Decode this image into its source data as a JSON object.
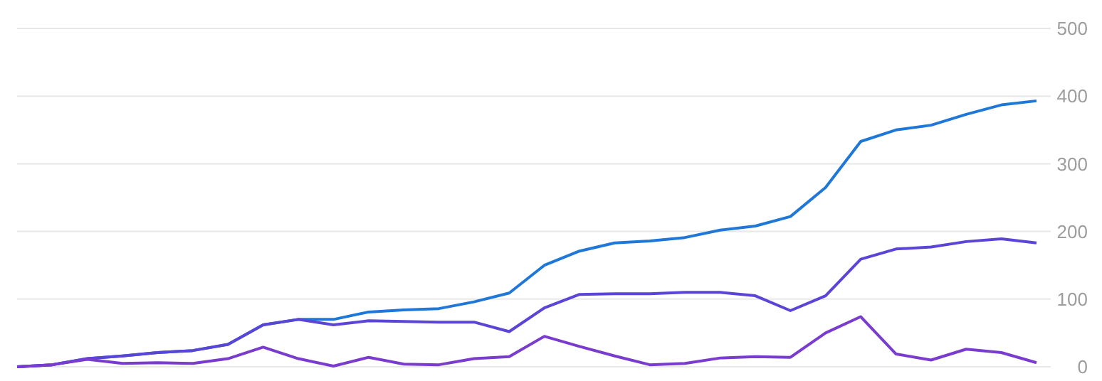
{
  "chart_data": {
    "type": "line",
    "categories": [
      null,
      null,
      null,
      null,
      null,
      null,
      null,
      null,
      null,
      null,
      null,
      null,
      null,
      null,
      null,
      null,
      null,
      null,
      null,
      null,
      null,
      null,
      null,
      null,
      null,
      null,
      null,
      null,
      null,
      null
    ],
    "series": [
      {
        "color": "#1f78d8",
        "values": [
          0,
          3,
          12,
          16,
          21,
          24,
          33,
          62,
          70,
          70,
          81,
          84,
          86,
          96,
          109,
          150,
          171,
          183,
          186,
          191,
          202,
          208,
          222,
          265,
          333,
          350,
          357,
          373,
          387,
          393
        ]
      },
      {
        "color": "#5a45d6",
        "values": [
          0,
          3,
          12,
          16,
          21,
          24,
          33,
          62,
          70,
          62,
          68,
          67,
          66,
          66,
          52,
          87,
          107,
          108,
          108,
          110,
          110,
          105,
          83,
          105,
          159,
          174,
          177,
          185,
          189,
          183
        ]
      },
      {
        "color": "#7a3ccf",
        "values": [
          0,
          3,
          11,
          5,
          6,
          5,
          12,
          29,
          12,
          1,
          14,
          4,
          3,
          12,
          15,
          45,
          30,
          16,
          3,
          5,
          13,
          15,
          14,
          50,
          74,
          19,
          10,
          26,
          21,
          6
        ]
      }
    ],
    "ylim": [
      0,
      500
    ],
    "yticks": [
      0,
      100,
      200,
      300,
      400,
      500
    ],
    "grid": "y",
    "marker": "none",
    "line_style": "solid"
  }
}
